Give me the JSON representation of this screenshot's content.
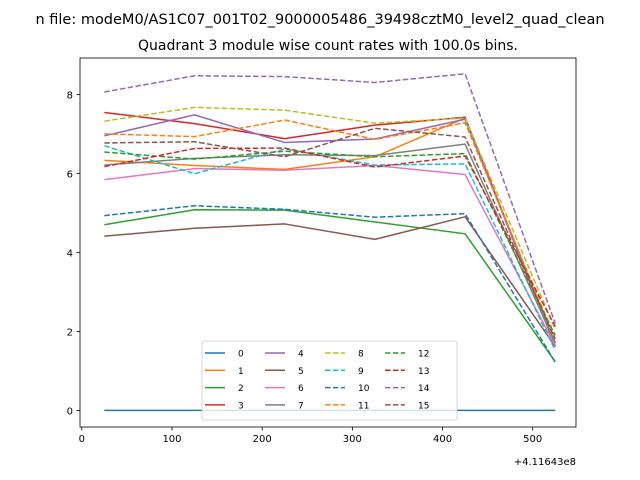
{
  "chart_data": {
    "type": "line",
    "suptitle": "n file: modeM0/AS1C07_001T02_9000005486_39498cztM0_level2_quad_clean",
    "title": "Quadrant 3 module wise count rates with 100.0s bins.",
    "xlabel": "",
    "ylabel": "",
    "x_offset_label": "+4.11643e8",
    "xlim": [
      -2,
      548
    ],
    "ylim": [
      -0.42,
      8.92
    ],
    "xticks": [
      0,
      100,
      200,
      300,
      400,
      500
    ],
    "yticks": [
      0,
      2,
      4,
      6,
      8
    ],
    "x": [
      25,
      125,
      225,
      325,
      425,
      525
    ],
    "legend_position": "lower-center",
    "series": [
      {
        "name": "0",
        "color": "#1f77b4",
        "dash": "solid",
        "values": [
          0,
          0,
          0,
          0,
          0,
          0
        ]
      },
      {
        "name": "1",
        "color": "#ff7f0e",
        "dash": "solid",
        "values": [
          6.33,
          6.2,
          6.1,
          6.42,
          7.4,
          1.7
        ]
      },
      {
        "name": "2",
        "color": "#2ca02c",
        "dash": "solid",
        "values": [
          4.7,
          5.08,
          5.07,
          4.77,
          4.47,
          1.23
        ]
      },
      {
        "name": "3",
        "color": "#d62728",
        "dash": "solid",
        "values": [
          7.54,
          7.26,
          6.88,
          7.22,
          7.42,
          1.62
        ]
      },
      {
        "name": "4",
        "color": "#9467bd",
        "dash": "solid",
        "values": [
          6.95,
          7.48,
          6.78,
          6.87,
          7.37,
          1.64
        ]
      },
      {
        "name": "5",
        "color": "#8c564b",
        "dash": "solid",
        "values": [
          4.41,
          4.61,
          4.72,
          4.33,
          4.9,
          1.62
        ]
      },
      {
        "name": "6",
        "color": "#e377c2",
        "dash": "solid",
        "values": [
          5.84,
          6.12,
          6.08,
          6.2,
          5.97,
          1.64
        ]
      },
      {
        "name": "7",
        "color": "#7f7f7f",
        "dash": "solid",
        "values": [
          6.21,
          6.38,
          6.47,
          6.45,
          6.74,
          1.7
        ]
      },
      {
        "name": "8",
        "color": "#bcbd22",
        "dash": "dashed",
        "values": [
          7.32,
          7.67,
          7.6,
          7.27,
          7.4,
          2.05
        ]
      },
      {
        "name": "9",
        "color": "#17becf",
        "dash": "dashed",
        "values": [
          6.7,
          5.99,
          6.62,
          6.21,
          6.24,
          1.52
        ]
      },
      {
        "name": "10",
        "color": "#1f77b4",
        "dash": "dashed",
        "values": [
          4.93,
          5.18,
          5.09,
          4.89,
          4.98,
          1.22
        ]
      },
      {
        "name": "11",
        "color": "#ff7f0e",
        "dash": "dashed",
        "values": [
          7.0,
          6.93,
          7.35,
          6.86,
          7.28,
          1.82
        ]
      },
      {
        "name": "12",
        "color": "#2ca02c",
        "dash": "dashed",
        "values": [
          6.54,
          6.36,
          6.56,
          6.42,
          6.5,
          1.9
        ]
      },
      {
        "name": "13",
        "color": "#d62728",
        "dash": "dashed",
        "values": [
          6.17,
          6.63,
          6.64,
          6.16,
          6.44,
          2.12
        ]
      },
      {
        "name": "14",
        "color": "#9467bd",
        "dash": "dashed",
        "values": [
          8.06,
          8.47,
          8.45,
          8.3,
          8.52,
          2.2
        ]
      },
      {
        "name": "15",
        "color": "#8c564b",
        "dash": "dashed",
        "values": [
          6.77,
          6.8,
          6.42,
          7.14,
          6.92,
          1.8
        ]
      }
    ]
  }
}
